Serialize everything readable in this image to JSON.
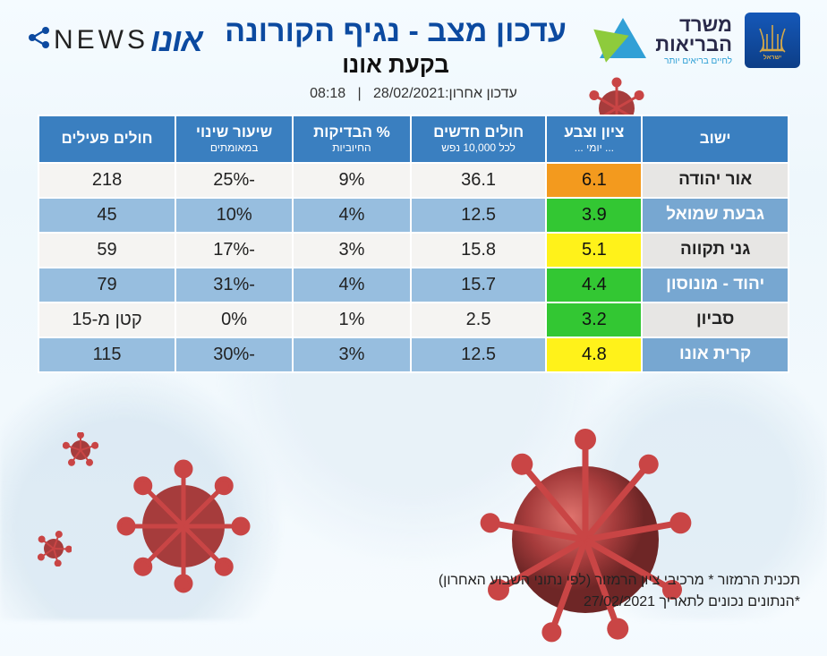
{
  "header": {
    "title_main": "עדכון מצב - נגיף הקורונה",
    "title_sub": "בקעת אונו",
    "moh_line1": "משרד",
    "moh_line2": "הבריאות",
    "moh_tag": "לחיים בריאים יותר",
    "news_ono": "אונו",
    "news_text": "NEWS"
  },
  "updated": {
    "label": "עדכון אחרון:",
    "date": "28/02/2021",
    "sep": "|",
    "time": "08:18"
  },
  "columns": {
    "city": "ישוב",
    "score": "ציון וצבע",
    "score_sub": "... יומי ...",
    "new_cases": "חולים חדשים",
    "new_cases_sub": "לכל 10,000 נפש",
    "positive": "% הבדיקות",
    "positive_sub": "החיוביות",
    "change": "שיעור שינוי",
    "change_sub": "במאומתים",
    "active": "חולים פעילים"
  },
  "rows": [
    {
      "city": "אור יהודה",
      "score": "6.1",
      "score_color": "orange",
      "new": "36.1",
      "pos": "9%",
      "chg": "-25%",
      "active": "218"
    },
    {
      "city": "גבעת שמואל",
      "score": "3.9",
      "score_color": "green",
      "new": "12.5",
      "pos": "4%",
      "chg": "10%",
      "active": "45"
    },
    {
      "city": "גני תקווה",
      "score": "5.1",
      "score_color": "yellow",
      "new": "15.8",
      "pos": "3%",
      "chg": "-17%",
      "active": "59"
    },
    {
      "city": "יהוד - מונוסון",
      "score": "4.4",
      "score_color": "green",
      "new": "15.7",
      "pos": "4%",
      "chg": "-31%",
      "active": "79"
    },
    {
      "city": "סביון",
      "score": "3.2",
      "score_color": "green",
      "new": "2.5",
      "pos": "1%",
      "chg": "0%",
      "active": "קטן מ-15"
    },
    {
      "city": "קרית אונו",
      "score": "4.8",
      "score_color": "yellow",
      "new": "12.5",
      "pos": "3%",
      "chg": "-30%",
      "active": "115"
    }
  ],
  "footer": {
    "line1": "תכנית הרמזור * מרכיבי ציון הרמזור (לפי נתוני השבוע האחרון)",
    "line2": "*הנתונים נכונים לתאריך 27/02/2021"
  },
  "virus_color_body": "#b53a3a",
  "virus_color_spike": "#d94a4a"
}
